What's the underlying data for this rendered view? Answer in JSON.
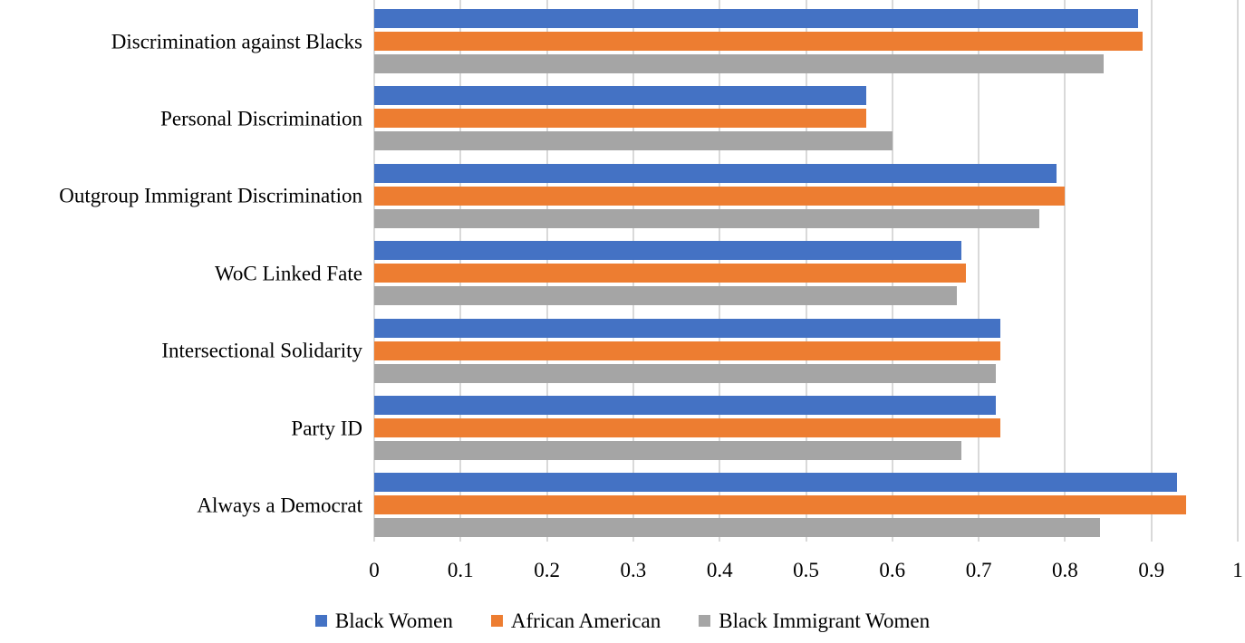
{
  "chart_data": {
    "type": "bar",
    "orientation": "horizontal",
    "title": "",
    "xlabel": "",
    "ylabel": "",
    "xlim": [
      0,
      1
    ],
    "x_ticks": [
      "0",
      "0.1",
      "0.2",
      "0.3",
      "0.4",
      "0.5",
      "0.6",
      "0.7",
      "0.8",
      "0.9",
      "1"
    ],
    "grid": "vertical",
    "legend_position": "bottom",
    "categories": [
      "Discrimination against Blacks",
      "Personal Discrimination",
      "Outgroup Immigrant Discrimination",
      "WoC Linked Fate",
      "Intersectional Solidarity",
      "Party ID",
      "Always a Democrat"
    ],
    "series": [
      {
        "name": "Black Women",
        "color": "#4472C4",
        "values": [
          0.885,
          0.57,
          0.79,
          0.68,
          0.725,
          0.72,
          0.93
        ]
      },
      {
        "name": "African American",
        "color": "#ED7D31",
        "values": [
          0.89,
          0.57,
          0.8,
          0.685,
          0.725,
          0.725,
          0.94
        ]
      },
      {
        "name": "Black Immigrant Women",
        "color": "#A5A5A5",
        "values": [
          0.845,
          0.6,
          0.77,
          0.675,
          0.72,
          0.68,
          0.84
        ]
      }
    ],
    "colors": {
      "gridline": "#D9D9D9",
      "text": "#000000",
      "background": "#FFFFFF"
    }
  }
}
